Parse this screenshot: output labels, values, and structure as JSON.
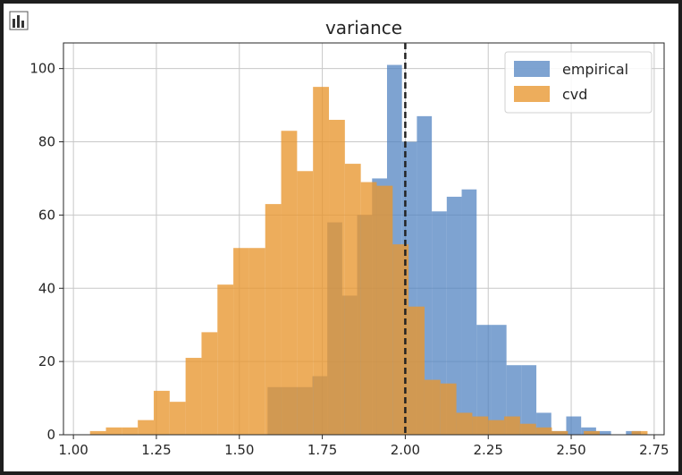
{
  "toolbar": {
    "icon": "bar-chart-icon"
  },
  "chart_data": {
    "type": "bar",
    "title": "variance",
    "xlabel": "",
    "ylabel": "",
    "xlim": [
      0.97,
      2.78
    ],
    "ylim": [
      0,
      107
    ],
    "xticks": [
      "1.00",
      "1.25",
      "1.50",
      "1.75",
      "2.00",
      "2.25",
      "2.50",
      "2.75"
    ],
    "yticks": [
      "0",
      "20",
      "40",
      "60",
      "80",
      "100"
    ],
    "grid": true,
    "legend_position": "top-right",
    "vline": {
      "x": 2.0,
      "style": "dashed",
      "color": "#222222"
    },
    "series": [
      {
        "name": "empirical",
        "color": "#4c7fbf",
        "alpha": 0.72,
        "bins": [
          [
            1.585,
            1.63,
            13
          ],
          [
            1.63,
            1.675,
            13
          ],
          [
            1.675,
            1.72,
            13
          ],
          [
            1.72,
            1.765,
            16
          ],
          [
            1.765,
            1.81,
            58
          ],
          [
            1.81,
            1.855,
            38
          ],
          [
            1.855,
            1.9,
            60
          ],
          [
            1.9,
            1.945,
            70
          ],
          [
            1.945,
            1.99,
            101
          ],
          [
            1.99,
            2.035,
            80
          ],
          [
            2.035,
            2.08,
            87
          ],
          [
            2.08,
            2.125,
            61
          ],
          [
            2.125,
            2.17,
            65
          ],
          [
            2.17,
            2.215,
            67
          ],
          [
            2.215,
            2.26,
            30
          ],
          [
            2.26,
            2.305,
            30
          ],
          [
            2.305,
            2.35,
            19
          ],
          [
            2.35,
            2.395,
            19
          ],
          [
            2.395,
            2.44,
            6
          ],
          [
            2.44,
            2.485,
            1
          ],
          [
            2.485,
            2.53,
            5
          ],
          [
            2.53,
            2.575,
            2
          ],
          [
            2.575,
            2.62,
            1
          ],
          [
            2.62,
            2.665,
            0
          ],
          [
            2.665,
            2.71,
            1
          ]
        ]
      },
      {
        "name": "cvd",
        "color": "#e8962e",
        "alpha": 0.78,
        "bins": [
          [
            1.05,
            1.098,
            1
          ],
          [
            1.098,
            1.146,
            2
          ],
          [
            1.146,
            1.194,
            2
          ],
          [
            1.194,
            1.242,
            4
          ],
          [
            1.242,
            1.29,
            12
          ],
          [
            1.29,
            1.338,
            9
          ],
          [
            1.338,
            1.386,
            21
          ],
          [
            1.386,
            1.434,
            28
          ],
          [
            1.434,
            1.482,
            41
          ],
          [
            1.482,
            1.53,
            51
          ],
          [
            1.53,
            1.578,
            51
          ],
          [
            1.578,
            1.626,
            63
          ],
          [
            1.626,
            1.674,
            83
          ],
          [
            1.674,
            1.722,
            72
          ],
          [
            1.722,
            1.77,
            95
          ],
          [
            1.77,
            1.818,
            86
          ],
          [
            1.818,
            1.866,
            74
          ],
          [
            1.866,
            1.914,
            69
          ],
          [
            1.914,
            1.962,
            68
          ],
          [
            1.962,
            2.01,
            52
          ],
          [
            2.01,
            2.058,
            35
          ],
          [
            2.058,
            2.106,
            15
          ],
          [
            2.106,
            2.154,
            14
          ],
          [
            2.154,
            2.202,
            6
          ],
          [
            2.202,
            2.25,
            5
          ],
          [
            2.25,
            2.298,
            4
          ],
          [
            2.298,
            2.346,
            5
          ],
          [
            2.346,
            2.394,
            3
          ],
          [
            2.394,
            2.442,
            2
          ],
          [
            2.442,
            2.49,
            1
          ],
          [
            2.49,
            2.538,
            0
          ],
          [
            2.538,
            2.586,
            1
          ],
          [
            2.586,
            2.634,
            0
          ],
          [
            2.634,
            2.682,
            0
          ],
          [
            2.682,
            2.73,
            1
          ]
        ]
      }
    ]
  }
}
